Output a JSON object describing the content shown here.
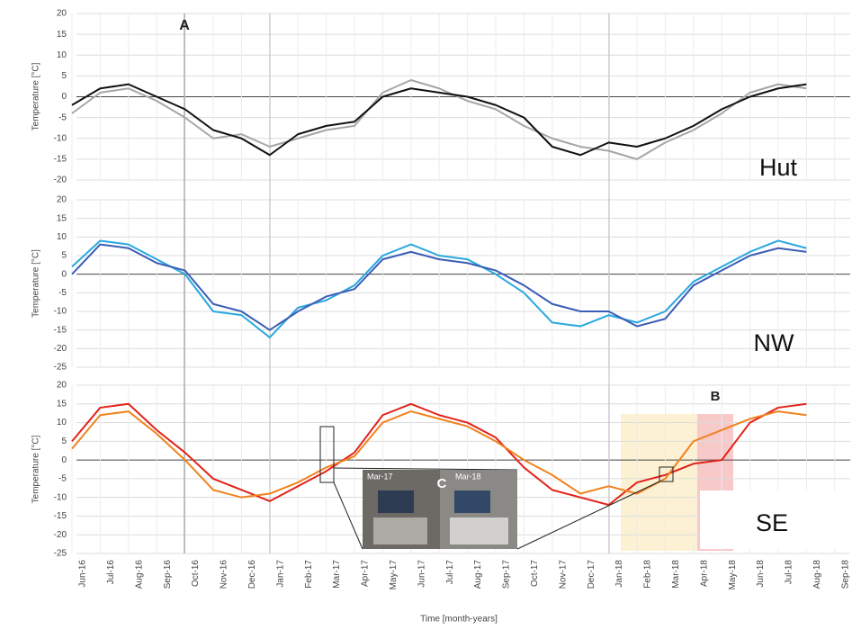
{
  "chart_data": [
    {
      "type": "line",
      "ylabel": "Temperature [°C]",
      "panel_label": "Hut",
      "annotations": [
        "A"
      ],
      "ylim": [
        -20,
        20
      ],
      "yticks": [
        -20,
        -15,
        -10,
        -5,
        0,
        5,
        10,
        15,
        20
      ],
      "grid": true,
      "series": [
        {
          "color": "#a6a6a6",
          "values": [
            -4,
            1,
            2,
            -1,
            -5,
            -10,
            -9,
            -12,
            -10,
            -8,
            -7,
            1,
            4,
            2,
            -1,
            -3,
            -7,
            -10,
            -12,
            -13,
            -15,
            -11,
            -8,
            -4,
            1,
            3,
            2,
            null
          ]
        },
        {
          "color": "#111111",
          "values": [
            -2,
            2,
            3,
            0,
            -3,
            -8,
            -10,
            -14,
            -9,
            -7,
            -6,
            0,
            2,
            1,
            0,
            -2,
            -5,
            -12,
            -14,
            -11,
            -12,
            -10,
            -7,
            -3,
            0,
            2,
            3,
            null
          ]
        }
      ]
    },
    {
      "type": "line",
      "ylabel": "Temperature [°C]",
      "panel_label": "NW",
      "ylim": [
        -25,
        20
      ],
      "yticks": [
        -25,
        -20,
        -15,
        -10,
        -5,
        0,
        5,
        10,
        15,
        20
      ],
      "grid": true,
      "series": [
        {
          "color": "#29a8df",
          "values": [
            2,
            9,
            8,
            4,
            0,
            -10,
            -11,
            -17,
            -9,
            -7,
            -3,
            5,
            8,
            5,
            4,
            0,
            -5,
            -13,
            -14,
            -11,
            -13,
            -10,
            -2,
            2,
            6,
            9,
            7,
            null
          ]
        },
        {
          "color": "#3b5db5",
          "values": [
            0,
            8,
            7,
            3,
            1,
            -8,
            -10,
            -15,
            -10,
            -6,
            -4,
            4,
            6,
            4,
            3,
            1,
            -3,
            -8,
            -10,
            -10,
            -14,
            -12,
            -3,
            1,
            5,
            7,
            6,
            null
          ]
        }
      ]
    },
    {
      "type": "line",
      "ylabel": "Temperature [°C]",
      "panel_label": "SE",
      "annotations": [
        "B",
        "C",
        "Mar-17",
        "Mar-18"
      ],
      "ylim": [
        -25,
        20
      ],
      "yticks": [
        -25,
        -20,
        -15,
        -10,
        -5,
        0,
        5,
        10,
        15,
        20
      ],
      "grid": true,
      "xlabel": "Time [month-years]",
      "categories": [
        "Jun-16",
        "Jul-16",
        "Aug-16",
        "Sep-16",
        "Oct-16",
        "Nov-16",
        "Dec-16",
        "Jan-17",
        "Feb-17",
        "Mar-17",
        "Apr-17",
        "May-17",
        "Jun-17",
        "Jul-17",
        "Aug-17",
        "Sep-17",
        "Oct-17",
        "Nov-17",
        "Dec-17",
        "Jan-18",
        "Feb-18",
        "Mar-18",
        "Apr-18",
        "May-18",
        "Jun-18",
        "Jul-18",
        "Aug-18",
        "Sep-18"
      ],
      "series": [
        {
          "color": "#e2231a",
          "values": [
            5,
            14,
            15,
            8,
            2,
            -5,
            -8,
            -11,
            -7,
            -3,
            2,
            12,
            15,
            12,
            10,
            6,
            -2,
            -8,
            -10,
            -12,
            -6,
            -4,
            -1,
            0,
            10,
            14,
            15,
            null
          ]
        },
        {
          "color": "#f0821e",
          "values": [
            3,
            12,
            13,
            7,
            0,
            -8,
            -10,
            -9,
            -6,
            -2,
            1,
            10,
            13,
            11,
            9,
            5,
            0,
            -4,
            -9,
            -7,
            -9,
            -5,
            5,
            8,
            11,
            13,
            12,
            null
          ]
        }
      ]
    }
  ]
}
